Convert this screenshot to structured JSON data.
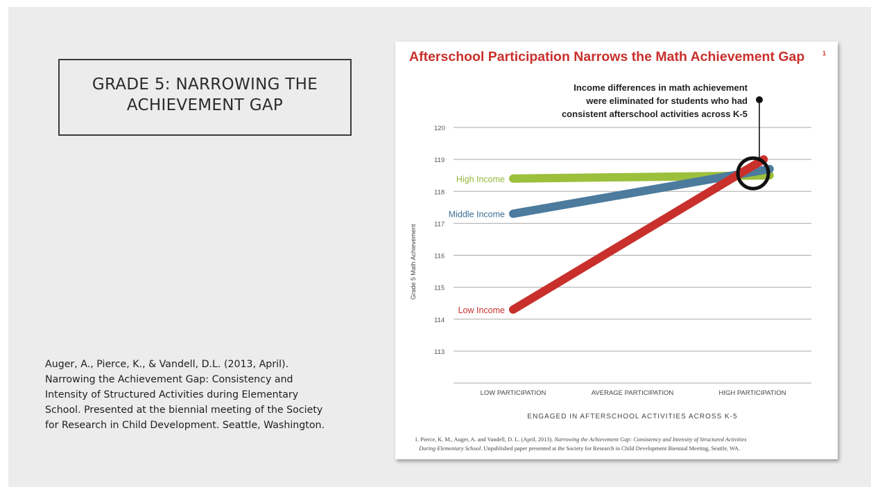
{
  "slide": {
    "title_line1": "GRADE 5: NARROWING THE",
    "title_line2": "ACHIEVEMENT GAP",
    "citation_lines": [
      "Auger, A., Pierce, K., & Vandell, D.L. (2013, April).",
      "Narrowing the Achievement Gap: Consistency and",
      "Intensity of Structured Activities during Elementary",
      "School. Presented at the biennial meeting of the Society",
      "for Research in Child Development. Seattle, Washington."
    ]
  },
  "chart_data": {
    "type": "line",
    "title": "Afterschool Participation Narrows the Math Achievement Gap",
    "title_superscript": "1",
    "xlabel": "ENGAGED IN AFTERSCHOOL ACTIVITIES ACROSS K-5",
    "ylabel": "Grade 5 Math Achievement",
    "categories": [
      "LOW PARTICIPATION",
      "AVERAGE PARTICIPATION",
      "HIGH PARTICIPATION"
    ],
    "y_ticks": [
      113,
      114,
      115,
      116,
      117,
      118,
      119,
      120
    ],
    "ylim": [
      112,
      120
    ],
    "grid": true,
    "series": [
      {
        "name": "High Income",
        "color": "#9cbf3c",
        "label_color": "#95b839",
        "points": [
          [
            0,
            118.4
          ],
          [
            2.15,
            118.5
          ]
        ]
      },
      {
        "name": "Middle Income",
        "color": "#4c7b9d",
        "label_color": "#3f6f93",
        "points": [
          [
            0,
            117.3
          ],
          [
            2.15,
            118.7
          ]
        ]
      },
      {
        "name": "Low Income",
        "color": "#c9302c",
        "label_color": "#c9302c",
        "points": [
          [
            0,
            114.3
          ],
          [
            2.1,
            119.0
          ]
        ]
      }
    ],
    "annotation": {
      "lines": [
        "Income differences in math achievement",
        "were eliminated for students who had",
        "consistent afterschool activities across K-5"
      ],
      "x": 2.0,
      "y": 118.5
    },
    "footnote": {
      "prefix": "1.  Pierce, K. M., Auger, A. and Vandell, D. L. (April, 2013). ",
      "title_italic_1": "Narrowing the Achievement Gap: Consistency and Intensity of Structured Activities",
      "title_italic_2": "During Elementary School.",
      "suffix": " Unpublished paper presented at the Society for Research in Child Development Biennial Meeting, Seattle, WA."
    },
    "colors": {
      "title": "#c9302c",
      "grid": "#a9a9a9",
      "annotation": "#222222"
    }
  }
}
